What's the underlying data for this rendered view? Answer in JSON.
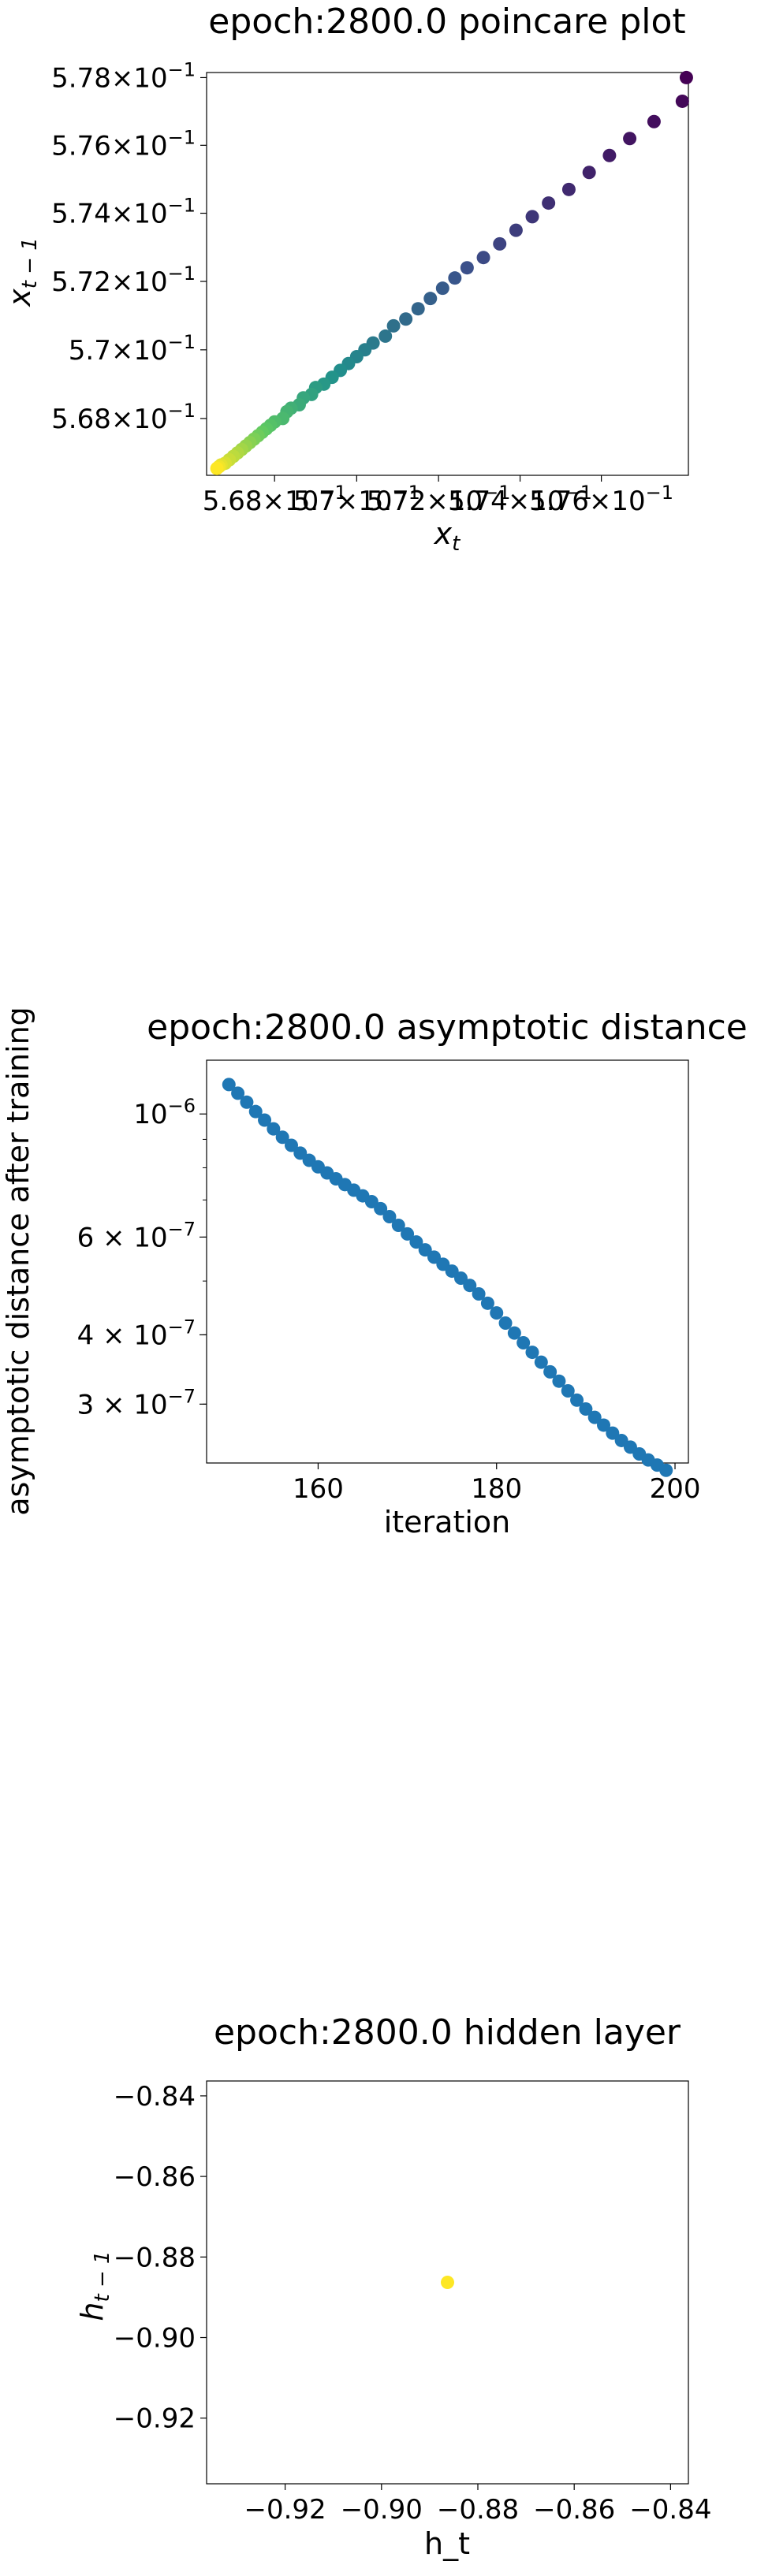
{
  "chart_data": [
    {
      "type": "scatter",
      "title": "epoch:2800.0 poincare plot",
      "xlabel": "x_t",
      "ylabel": "x_{t-1}",
      "yscale": "log",
      "xscale": "log",
      "ylim": [
        0.56635,
        0.57815
      ],
      "xlim": [
        0.56635,
        0.57815
      ],
      "colormap": "viridis",
      "grid": false,
      "ytick_labels": [
        {
          "v": 0.568,
          "base": "5.68",
          "exp": "−1"
        },
        {
          "v": 0.57,
          "base": "5.7",
          "exp": "−1"
        },
        {
          "v": 0.572,
          "base": "5.72",
          "exp": "−1"
        },
        {
          "v": 0.574,
          "base": "5.74",
          "exp": "−1"
        },
        {
          "v": 0.576,
          "base": "5.76",
          "exp": "−1"
        },
        {
          "v": 0.578,
          "base": "5.78",
          "exp": "−1"
        }
      ],
      "xtick_labels": [
        {
          "v": 0.568,
          "base": "5.68",
          "exp": "−1"
        },
        {
          "v": 0.57,
          "base": "5.7",
          "exp": "−1"
        },
        {
          "v": 0.572,
          "base": "5.72",
          "exp": "−1"
        },
        {
          "v": 0.574,
          "base": "5.74",
          "exp": "−1"
        },
        {
          "v": 0.576,
          "base": "5.76",
          "exp": "−1"
        }
      ],
      "points": [
        [
          0.5781,
          0.578
        ],
        [
          0.578,
          0.5773
        ],
        [
          0.5773,
          0.5767
        ],
        [
          0.5767,
          0.5762
        ],
        [
          0.5762,
          0.5757
        ],
        [
          0.5757,
          0.5752
        ],
        [
          0.5752,
          0.5747
        ],
        [
          0.5747,
          0.5743
        ],
        [
          0.5743,
          0.5739
        ],
        [
          0.5739,
          0.5735
        ],
        [
          0.5735,
          0.5731
        ],
        [
          0.5731,
          0.5727
        ],
        [
          0.5727,
          0.5724
        ],
        [
          0.5724,
          0.5721
        ],
        [
          0.5721,
          0.5718
        ],
        [
          0.5718,
          0.5715
        ],
        [
          0.5715,
          0.5712
        ],
        [
          0.5712,
          0.5709
        ],
        [
          0.5709,
          0.5707
        ],
        [
          0.5707,
          0.5704
        ],
        [
          0.5704,
          0.5702
        ],
        [
          0.5702,
          0.57
        ],
        [
          0.57,
          0.5698
        ],
        [
          0.5698,
          0.5696
        ],
        [
          0.5696,
          0.5694
        ],
        [
          0.5694,
          0.5692
        ],
        [
          0.5692,
          0.569
        ],
        [
          0.569,
          0.5689
        ],
        [
          0.5689,
          0.5687
        ],
        [
          0.5687,
          0.5686
        ],
        [
          0.5686,
          0.5684
        ],
        [
          0.5684,
          0.5683
        ],
        [
          0.5683,
          0.5682
        ],
        [
          0.5682,
          0.568
        ],
        [
          0.568,
          0.5679
        ],
        [
          0.5679,
          0.5678
        ],
        [
          0.5678,
          0.5677
        ],
        [
          0.5677,
          0.5676
        ],
        [
          0.5676,
          0.5675
        ],
        [
          0.5675,
          0.5674
        ],
        [
          0.5674,
          0.5673
        ],
        [
          0.5673,
          0.5672
        ],
        [
          0.5672,
          0.5671
        ],
        [
          0.5671,
          0.567
        ],
        [
          0.567,
          0.5669
        ],
        [
          0.5669,
          0.5668
        ],
        [
          0.5668,
          0.5667
        ],
        [
          0.5667,
          0.56665
        ],
        [
          0.56665,
          0.5666
        ],
        [
          0.5666,
          0.56655
        ]
      ]
    },
    {
      "type": "scatter",
      "title": "epoch:2800.0 asymptotic distance",
      "xlabel": "iteration",
      "ylabel": "asymptotic distance after training",
      "yscale": "log",
      "xlim": [
        147.5,
        201.5
      ],
      "ylim": [
        2.35e-07,
        1.25e-06
      ],
      "color": "#1f77b4",
      "grid": false,
      "xticks": [
        160,
        180,
        200
      ],
      "ytick_labels": [
        {
          "v": 1e-06,
          "base": "10",
          "exp": "−6",
          "form": "pow"
        },
        {
          "v": 6e-07,
          "base": "6 × 10",
          "exp": "−7",
          "form": "pow"
        },
        {
          "v": 4e-07,
          "base": "4 × 10",
          "exp": "−7",
          "form": "pow"
        },
        {
          "v": 3e-07,
          "base": "3 × 10",
          "exp": "−7",
          "form": "pow"
        }
      ],
      "x": [
        150,
        151,
        152,
        153,
        154,
        155,
        156,
        157,
        158,
        159,
        160,
        161,
        162,
        163,
        164,
        165,
        166,
        167,
        168,
        169,
        170,
        171,
        172,
        173,
        174,
        175,
        176,
        177,
        178,
        179,
        180,
        181,
        182,
        183,
        184,
        185,
        186,
        187,
        188,
        189,
        190,
        191,
        192,
        193,
        194,
        195,
        196,
        197,
        198,
        199
      ],
      "y": [
        1.13e-06,
        1.09e-06,
        1.05e-06,
        1.01e-06,
        9.75e-07,
        9.4e-07,
        9.08e-07,
        8.78e-07,
        8.5e-07,
        8.25e-07,
        8.03e-07,
        7.83e-07,
        7.64e-07,
        7.46e-07,
        7.29e-07,
        7.12e-07,
        6.95e-07,
        6.75e-07,
        6.53e-07,
        6.3e-07,
        6.08e-07,
        5.88e-07,
        5.69e-07,
        5.52e-07,
        5.36e-07,
        5.21e-07,
        5.06e-07,
        4.91e-07,
        4.74e-07,
        4.56e-07,
        4.38e-07,
        4.2e-07,
        4.03e-07,
        3.87e-07,
        3.72e-07,
        3.57e-07,
        3.43e-07,
        3.3e-07,
        3.17e-07,
        3.05e-07,
        2.94e-07,
        2.84e-07,
        2.75e-07,
        2.66e-07,
        2.58e-07,
        2.51e-07,
        2.44e-07,
        2.38e-07,
        2.33e-07,
        2.28e-07
      ]
    },
    {
      "type": "scatter",
      "title": "epoch:2800.0 hidden layer",
      "xlabel": "h_t",
      "ylabel": "h_{t-1}",
      "xlim": [
        -0.9363,
        -0.8363
      ],
      "ylim": [
        -0.9363,
        -0.8363
      ],
      "xticks": [
        -0.92,
        -0.9,
        -0.88,
        -0.86,
        -0.84
      ],
      "xtick_labels": [
        "−0.92",
        "−0.90",
        "−0.88",
        "−0.86",
        "−0.84"
      ],
      "yticks": [
        -0.84,
        -0.86,
        -0.88,
        -0.9,
        -0.92
      ],
      "ytick_labels": [
        "−0.84",
        "−0.86",
        "−0.88",
        "−0.90",
        "−0.92"
      ],
      "points": [
        [
          -0.8863,
          -0.8863
        ]
      ],
      "color": "#fde725",
      "grid": false
    }
  ]
}
